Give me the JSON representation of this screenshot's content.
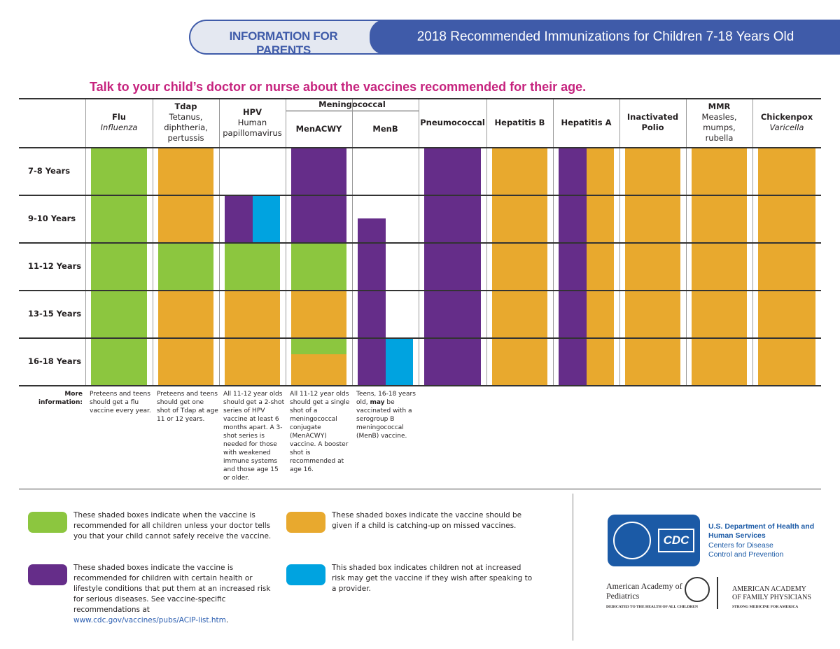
{
  "header": {
    "tab": "INFORMATION FOR PARENTS",
    "title": "2018 Recommended Immunizations for Children 7-18 Years Old"
  },
  "subtitle": "Talk to your child’s doctor or nurse about the vaccines recommended for their age.",
  "table": {
    "group": "Meningococcal",
    "columns": [
      {
        "name": "Flu",
        "sub": "Influenza",
        "italic": true
      },
      {
        "name": "Tdap",
        "sub": "Tetanus, diphtheria, pertussis"
      },
      {
        "name": "HPV",
        "sub": "Human papillomavirus"
      },
      {
        "name": "MenACWY"
      },
      {
        "name": "MenB"
      },
      {
        "name": "Pneumococcal"
      },
      {
        "name": "Hepatitis B"
      },
      {
        "name": "Hepatitis A"
      },
      {
        "name": "Inactivated Polio"
      },
      {
        "name": "MMR",
        "sub": "Measles, mumps, rubella"
      },
      {
        "name": "Chickenpox",
        "sub": "Varicella",
        "italic": true
      }
    ],
    "rows": [
      "7-8 Years",
      "9-10 Years",
      "11-12 Years",
      "13-15 Years",
      "16-18 Years"
    ],
    "more_label": "More information:",
    "notes": [
      {
        "text": "Preteens and teens should get a flu vaccine every year."
      },
      {
        "text": "Preteens and teens should get one shot of Tdap at age 11 or 12 years."
      },
      {
        "text": "All 11-12 year olds should get a 2-shot series of HPV vaccine at least 6 months apart. A 3-shot series is needed for those with weakened immune systems and those age 15 or older."
      },
      {
        "text": "All 11-12 year olds should get a single shot of a meningococcal conjugate (MenACWY) vaccine. A booster shot is recommended at age 16."
      },
      {
        "text": "Teens, 16-18 years old, ",
        "bold": "may",
        "after": " be vaccinated with a serogroup B meningococcal (MenB) vaccine."
      }
    ]
  },
  "legend": [
    {
      "color": "#8cc63f",
      "text": "These shaded boxes indicate when the vaccine is recommended for all children unless your doctor tells you that your child cannot safely receive the vaccine."
    },
    {
      "color": "#e8a92e",
      "text": "These shaded boxes indicate the vaccine should be given if a child is catching-up on missed vaccines."
    },
    {
      "color": "#652d89",
      "text": "These shaded boxes indicate the vaccine is recommended for children with certain health or lifestyle conditions that put them at an increased risk for serious diseases. See vaccine-specific recommendations at ",
      "link": "www.cdc.gov/vaccines/pubs/ACIP-list.htm",
      "after": "."
    },
    {
      "color": "#00a3e0",
      "text": "This shaded box indicates children not at increased risk may get the vaccine if they wish after speaking to a provider."
    }
  ],
  "logos": {
    "cdc_mark": "CDC",
    "hhs": "U.S. Department of Health and Human Services",
    "cdc": "Centers for Disease Control and Prevention",
    "aap": "American Academy of Pediatrics",
    "aap_tag": "DEDICATED TO THE HEALTH OF ALL CHILDREN",
    "aafp": "AMERICAN ACADEMY OF FAMILY PHYSICIANS",
    "aafp_tag": "STRONG MEDICINE FOR AMERICA"
  }
}
